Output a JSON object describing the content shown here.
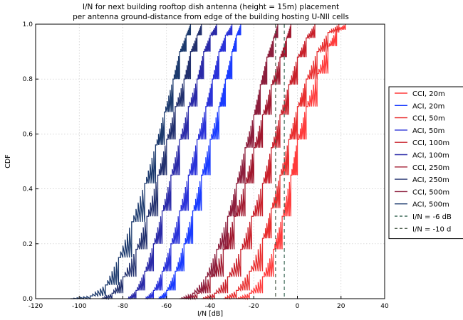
{
  "chart_data": {
    "type": "line",
    "title": "I/N for next building rooftop dish antenna (height = 15m) placement",
    "subtitle": "per antenna ground-distance from edge of the building hosting U-NII cells",
    "xlabel": "I/N [dB]",
    "ylabel": "CDF",
    "xlim": [
      -120,
      40
    ],
    "ylim": [
      0.0,
      1.0
    ],
    "x_ticks": [
      "-120",
      "-100",
      "-80",
      "-60",
      "-40",
      "-20",
      "0",
      "20",
      "40"
    ],
    "y_ticks": [
      "0.0",
      "0.2",
      "0.4",
      "0.6",
      "0.8",
      "1.0"
    ],
    "grid": true,
    "legend_position": "right, outside plot area",
    "series": [
      {
        "name": "CCI, 20m",
        "color": "#ff3b3b",
        "x": [
          -28,
          -22,
          -16,
          -11,
          -7,
          -3,
          0,
          4,
          9,
          14,
          18,
          22
        ],
        "y": [
          0.0,
          0.02,
          0.08,
          0.18,
          0.3,
          0.45,
          0.58,
          0.7,
          0.82,
          0.92,
          0.98,
          1.0
        ]
      },
      {
        "name": "ACI, 20m",
        "color": "#1a3cff",
        "x": [
          -64,
          -60,
          -56,
          -52,
          -48,
          -44,
          -40,
          -36,
          -33,
          -30,
          -28,
          -26
        ],
        "y": [
          0.0,
          0.03,
          0.1,
          0.2,
          0.32,
          0.45,
          0.58,
          0.7,
          0.8,
          0.9,
          0.96,
          1.0
        ]
      },
      {
        "name": "CCI, 50m",
        "color": "#e82e2e",
        "x": [
          -34,
          -28,
          -22,
          -16,
          -12,
          -8,
          -4,
          0,
          4,
          9,
          14,
          19
        ],
        "y": [
          0.0,
          0.03,
          0.1,
          0.22,
          0.33,
          0.45,
          0.58,
          0.7,
          0.8,
          0.9,
          0.97,
          1.0
        ]
      },
      {
        "name": "ACI, 50m",
        "color": "#2a32d8",
        "x": [
          -70,
          -66,
          -62,
          -58,
          -54,
          -50,
          -46,
          -42,
          -39,
          -36,
          -33,
          -30
        ],
        "y": [
          0.0,
          0.03,
          0.1,
          0.2,
          0.32,
          0.45,
          0.58,
          0.7,
          0.8,
          0.9,
          0.96,
          1.0
        ]
      },
      {
        "name": "CCI, 100m",
        "color": "#c8202a",
        "x": [
          -44,
          -38,
          -32,
          -26,
          -21,
          -16,
          -12,
          -8,
          -4,
          0,
          4,
          8
        ],
        "y": [
          0.0,
          0.02,
          0.08,
          0.18,
          0.3,
          0.42,
          0.55,
          0.67,
          0.78,
          0.88,
          0.95,
          1.0
        ]
      },
      {
        "name": "ACI, 100m",
        "color": "#2a2aa8",
        "x": [
          -78,
          -74,
          -70,
          -66,
          -62,
          -58,
          -54,
          -50,
          -46,
          -43,
          -40,
          -37
        ],
        "y": [
          0.0,
          0.03,
          0.1,
          0.2,
          0.32,
          0.45,
          0.58,
          0.7,
          0.8,
          0.9,
          0.96,
          1.0
        ]
      },
      {
        "name": "CCI, 250m",
        "color": "#a0182e",
        "x": [
          -52,
          -46,
          -40,
          -34,
          -29,
          -24,
          -20,
          -16,
          -12,
          -8,
          -5,
          -3
        ],
        "y": [
          0.0,
          0.02,
          0.08,
          0.18,
          0.3,
          0.42,
          0.55,
          0.67,
          0.78,
          0.88,
          0.95,
          1.0
        ]
      },
      {
        "name": "ACI, 250m",
        "color": "#22306e",
        "x": [
          -90,
          -85,
          -80,
          -74,
          -69,
          -64,
          -60,
          -56,
          -52,
          -49,
          -46,
          -44
        ],
        "y": [
          0.0,
          0.02,
          0.08,
          0.18,
          0.3,
          0.45,
          0.58,
          0.7,
          0.8,
          0.9,
          0.96,
          1.0
        ]
      },
      {
        "name": "CCI, 500m",
        "color": "#8c1e3c",
        "x": [
          -54,
          -48,
          -42,
          -37,
          -32,
          -28,
          -24,
          -20,
          -17,
          -14,
          -11,
          -9
        ],
        "y": [
          0.0,
          0.02,
          0.08,
          0.18,
          0.3,
          0.42,
          0.55,
          0.67,
          0.78,
          0.88,
          0.95,
          1.0
        ]
      },
      {
        "name": "ACI, 500m",
        "color": "#1c3a6e",
        "x": [
          -104,
          -95,
          -88,
          -82,
          -76,
          -70,
          -65,
          -61,
          -57,
          -54,
          -51,
          -49
        ],
        "y": [
          0.0,
          0.01,
          0.05,
          0.15,
          0.28,
          0.42,
          0.56,
          0.68,
          0.8,
          0.9,
          0.96,
          1.0
        ]
      }
    ],
    "reference_lines": [
      {
        "name": "I/N = -6 dB",
        "x": -6,
        "color": "#3f6b5a",
        "dash": true
      },
      {
        "name": "I/N = -10 d",
        "x": -10,
        "color": "#4a5a4a",
        "dash": true
      }
    ]
  }
}
